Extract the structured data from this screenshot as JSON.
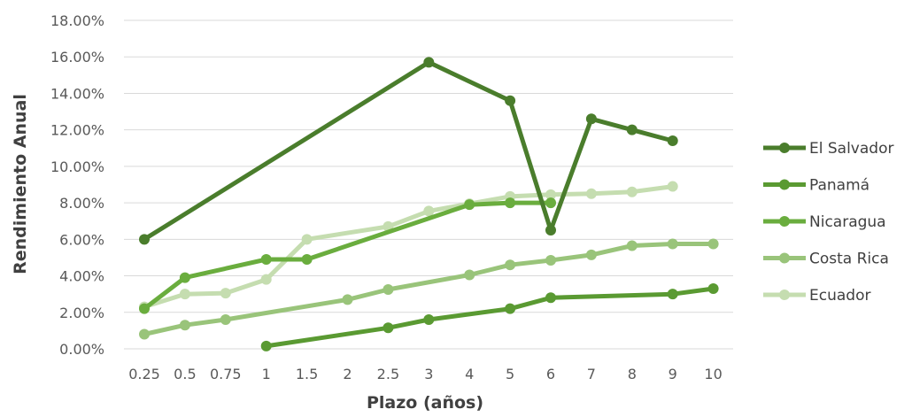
{
  "chart_data": {
    "type": "line",
    "xlabel": "Plazo (años)",
    "ylabel": "Rendimiento Anual",
    "categories": [
      "0.25",
      "0.5",
      "0.75",
      "1",
      "1.5",
      "2",
      "2.5",
      "3",
      "4",
      "5",
      "6",
      "7",
      "8",
      "9",
      "10"
    ],
    "y_ticks": [
      "0.00%",
      "2.00%",
      "4.00%",
      "6.00%",
      "8.00%",
      "10.00%",
      "12.00%",
      "14.00%",
      "16.00%",
      "18.00%"
    ],
    "ylim": [
      0,
      18
    ],
    "grid": true,
    "legend_position": "right",
    "series": [
      {
        "name": "El Salvador",
        "color": "#4a7d2c",
        "values": [
          6.0,
          null,
          null,
          null,
          null,
          null,
          null,
          15.7,
          null,
          13.6,
          6.5,
          12.6,
          12.0,
          11.4,
          null
        ]
      },
      {
        "name": "Panamá",
        "color": "#5a9a32",
        "values": [
          null,
          null,
          null,
          0.15,
          null,
          null,
          1.15,
          1.6,
          null,
          2.2,
          2.8,
          null,
          null,
          3.0,
          3.3
        ]
      },
      {
        "name": "Nicaragua",
        "color": "#6aad3e",
        "values": [
          2.2,
          3.9,
          null,
          4.9,
          4.9,
          null,
          null,
          null,
          7.9,
          8.0,
          8.0,
          null,
          null,
          null,
          null
        ]
      },
      {
        "name": "Costa Rica",
        "color": "#99c47a",
        "values": [
          0.8,
          1.3,
          1.6,
          null,
          null,
          2.7,
          3.25,
          null,
          4.05,
          4.6,
          4.85,
          5.15,
          5.65,
          5.75,
          5.75
        ]
      },
      {
        "name": "Ecuador",
        "color": "#c5ddb0",
        "values": [
          2.3,
          3.0,
          3.05,
          3.8,
          6.0,
          null,
          6.7,
          7.55,
          7.95,
          8.35,
          8.45,
          8.5,
          8.6,
          8.9,
          null
        ]
      }
    ]
  }
}
